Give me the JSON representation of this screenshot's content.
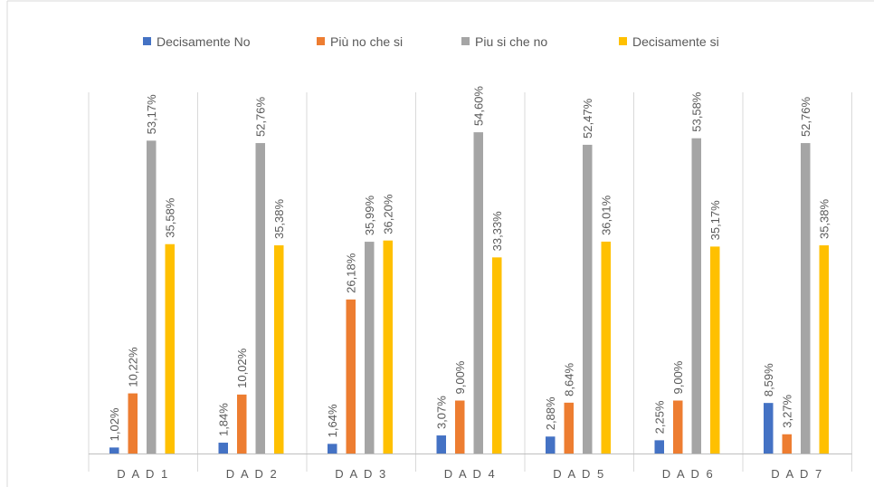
{
  "chart_data": {
    "type": "bar",
    "title": "",
    "xlabel": "",
    "ylabel": "",
    "ylim": [
      0,
      60
    ],
    "grid": false,
    "legend_position": "top",
    "categories": [
      "D A D 1",
      "D A D 2",
      "D A D 3",
      "D A D 4",
      "D A D 5",
      "D A D 6",
      "D A D 7"
    ],
    "series": [
      {
        "name": "Decisamente No",
        "color": "#4472C4",
        "values": [
          1.02,
          1.84,
          1.64,
          3.07,
          2.88,
          2.25,
          8.59
        ],
        "labels": [
          "1,02%",
          "1,84%",
          "1,64%",
          "3,07%",
          "2,88%",
          "2,25%",
          "8,59%"
        ]
      },
      {
        "name": "Più no che si",
        "color": "#ED7D31",
        "values": [
          10.22,
          10.02,
          26.18,
          9.0,
          8.64,
          9.0,
          3.27
        ],
        "labels": [
          "10,22%",
          "10,02%",
          "26,18%",
          "9,00%",
          "8,64%",
          "9,00%",
          "3,27%"
        ]
      },
      {
        "name": "Piu si che no",
        "color": "#A5A5A5",
        "values": [
          53.17,
          52.76,
          35.99,
          54.6,
          52.47,
          53.58,
          52.76
        ],
        "labels": [
          "53,17%",
          "52,76%",
          "35,99%",
          "54,60%",
          "52,47%",
          "53,58%",
          "52,76%"
        ]
      },
      {
        "name": "Decisamente si",
        "color": "#FFC000",
        "values": [
          35.58,
          35.38,
          36.2,
          33.33,
          36.01,
          35.17,
          35.38
        ],
        "labels": [
          "35,58%",
          "35,38%",
          "36,20%",
          "33,33%",
          "36,01%",
          "35,17%",
          "35,38%"
        ]
      }
    ],
    "separator_color": "#d9d9d9",
    "axis_color": "#bfbfbf"
  }
}
